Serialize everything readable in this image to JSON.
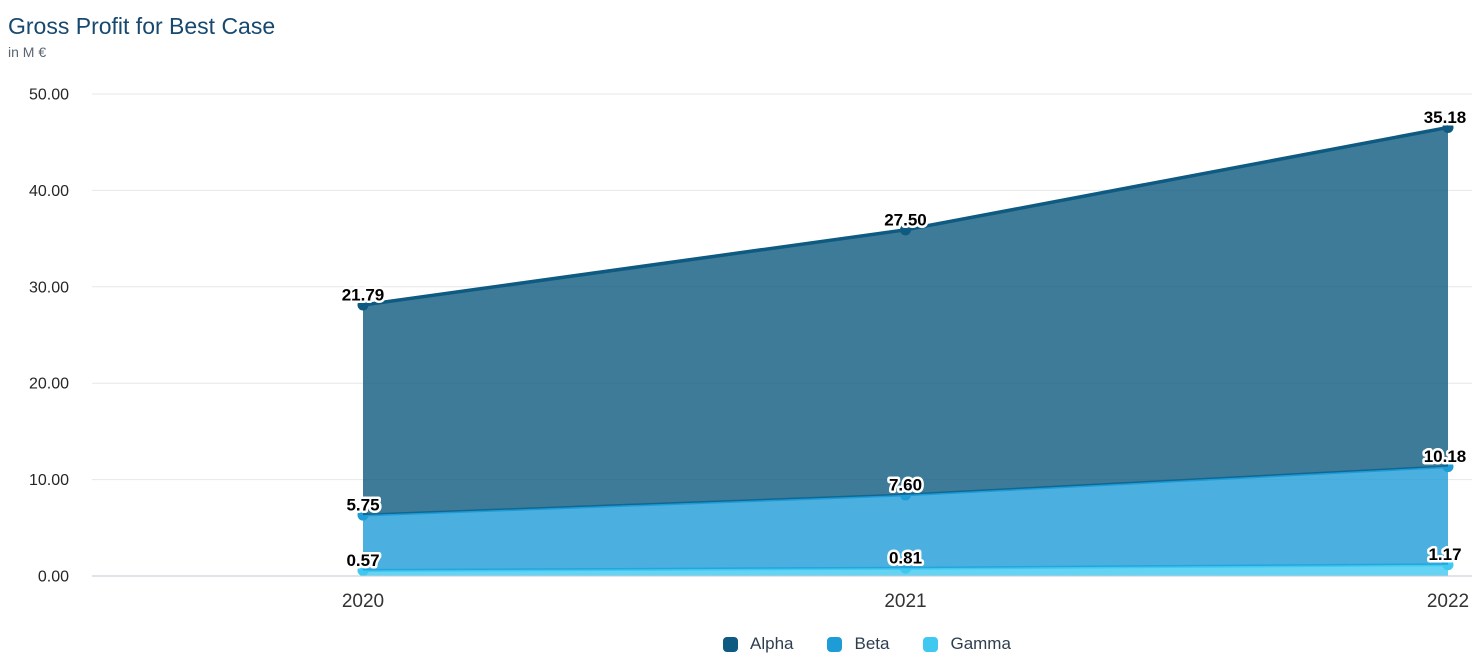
{
  "title": "Gross Profit for Best Case",
  "subtitle": "in M €",
  "chart_data": {
    "type": "area",
    "stacked": true,
    "categories": [
      "2020",
      "2021",
      "2022"
    ],
    "series": [
      {
        "name": "Alpha",
        "color": "#0e5a80",
        "values": [
          21.79,
          27.5,
          35.18
        ]
      },
      {
        "name": "Beta",
        "color": "#1e9cd7",
        "values": [
          5.75,
          7.6,
          10.18
        ]
      },
      {
        "name": "Gamma",
        "color": "#3fc8f0",
        "values": [
          0.57,
          0.81,
          1.17
        ]
      }
    ],
    "ylim": [
      0,
      50
    ],
    "y_tick_step": 10,
    "y_tick_labels": [
      "0.00",
      "10.00",
      "20.00",
      "30.00",
      "40.00",
      "50.00"
    ],
    "grid": true,
    "legend_position": "bottom",
    "fill_opacity": 0.8,
    "grid_color": "#e6e7e9",
    "axis_line_color": "#c2cad1",
    "tick_label_color": "#262626",
    "data_label_color": "#000000"
  }
}
